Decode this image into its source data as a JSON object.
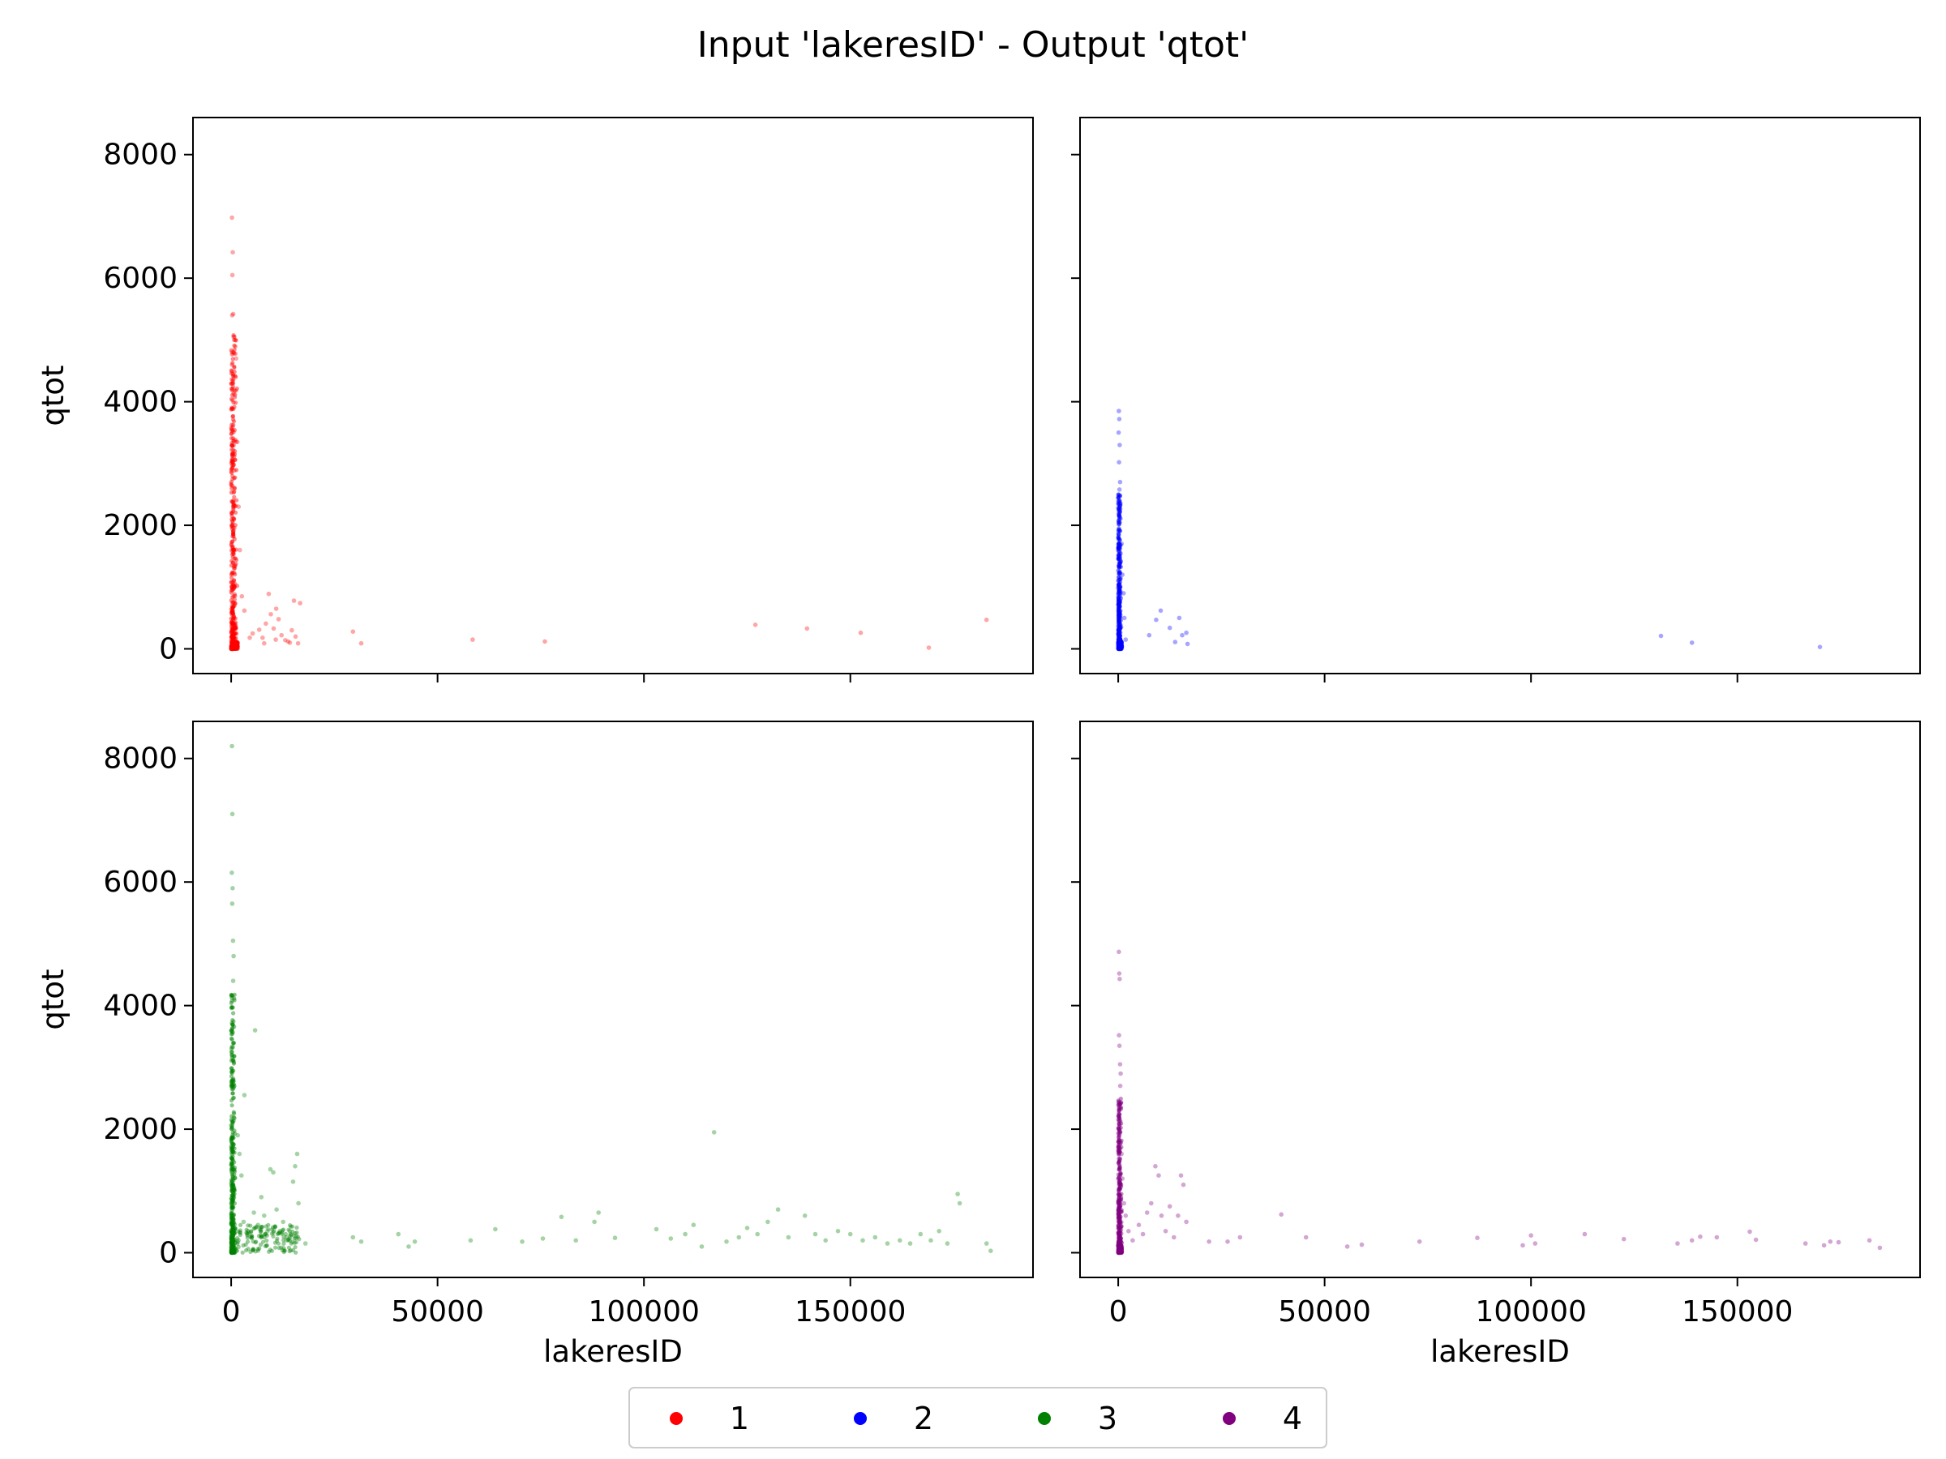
{
  "chart_data": {
    "type": "scatter",
    "title": "Input 'lakeresID' - Output 'qtot'",
    "xlabel": "lakeresID",
    "ylabel": "qtot",
    "xlim": [
      -9250,
      194250
    ],
    "ylim": [
      -400,
      8600
    ],
    "x_ticks": [
      0,
      50000,
      100000,
      150000
    ],
    "x_tick_labels": [
      "0",
      "50000",
      "100000",
      "150000"
    ],
    "y_ticks": [
      0,
      2000,
      4000,
      6000,
      8000
    ],
    "y_tick_labels": [
      "0",
      "2000",
      "4000",
      "6000",
      "8000"
    ],
    "shared_x": true,
    "shared_y": true,
    "grid": false,
    "legend": {
      "placement": "bottom-center",
      "entries": [
        "1",
        "2",
        "3",
        "4"
      ]
    },
    "series": [
      {
        "name": "1",
        "color": "#ff0000",
        "position": "top-left",
        "dense": {
          "x_max": 1500,
          "y_max": 5100
        },
        "points": [
          [
            200,
            6980
          ],
          [
            400,
            6420
          ],
          [
            300,
            6050
          ],
          [
            500,
            5420
          ],
          [
            250,
            5400
          ],
          [
            600,
            5050
          ],
          [
            1200,
            4700
          ],
          [
            1500,
            3350
          ],
          [
            1800,
            2300
          ],
          [
            2100,
            1600
          ],
          [
            900,
            1350
          ],
          [
            2600,
            850
          ],
          [
            3200,
            620
          ],
          [
            4500,
            180
          ],
          [
            5200,
            250
          ],
          [
            6800,
            310
          ],
          [
            7600,
            180
          ],
          [
            8400,
            410
          ],
          [
            9100,
            890
          ],
          [
            9600,
            560
          ],
          [
            10300,
            330
          ],
          [
            10800,
            150
          ],
          [
            11500,
            480
          ],
          [
            12200,
            220
          ],
          [
            13100,
            140
          ],
          [
            13800,
            120
          ],
          [
            14200,
            100
          ],
          [
            14700,
            300
          ],
          [
            15200,
            780
          ],
          [
            15600,
            200
          ],
          [
            16200,
            90
          ],
          [
            16700,
            740
          ],
          [
            8000,
            90
          ],
          [
            10900,
            650
          ],
          [
            29500,
            280
          ],
          [
            31500,
            90
          ],
          [
            58500,
            150
          ],
          [
            76000,
            120
          ],
          [
            127000,
            390
          ],
          [
            139500,
            330
          ],
          [
            152500,
            260
          ],
          [
            169000,
            20
          ],
          [
            183000,
            470
          ]
        ]
      },
      {
        "name": "2",
        "color": "#0000ff",
        "position": "top-right",
        "dense": {
          "x_max": 700,
          "y_max": 2500
        },
        "points": [
          [
            150,
            3850
          ],
          [
            250,
            3720
          ],
          [
            100,
            3500
          ],
          [
            350,
            3300
          ],
          [
            200,
            3020
          ],
          [
            450,
            2700
          ],
          [
            300,
            2580
          ],
          [
            550,
            2350
          ],
          [
            800,
            1700
          ],
          [
            1000,
            1200
          ],
          [
            1300,
            900
          ],
          [
            1500,
            500
          ],
          [
            700,
            350
          ],
          [
            1800,
            150
          ],
          [
            7500,
            220
          ],
          [
            9200,
            470
          ],
          [
            10300,
            620
          ],
          [
            12500,
            340
          ],
          [
            13800,
            110
          ],
          [
            14800,
            500
          ],
          [
            15500,
            220
          ],
          [
            16500,
            260
          ],
          [
            16800,
            80
          ],
          [
            131500,
            210
          ],
          [
            139000,
            100
          ],
          [
            170000,
            30
          ]
        ]
      },
      {
        "name": "3",
        "color": "#008000",
        "position": "bottom-left",
        "dense": {
          "x_max": 1000,
          "y_max": 4200
        },
        "points": [
          [
            200,
            8200
          ],
          [
            300,
            7100
          ],
          [
            150,
            6150
          ],
          [
            350,
            5900
          ],
          [
            250,
            5650
          ],
          [
            450,
            5050
          ],
          [
            600,
            4800
          ],
          [
            500,
            4400
          ],
          [
            3200,
            2550
          ],
          [
            5800,
            3600
          ],
          [
            1600,
            1900
          ],
          [
            2000,
            1600
          ],
          [
            2500,
            1250
          ],
          [
            3000,
            500
          ],
          [
            4000,
            300
          ],
          [
            5500,
            650
          ],
          [
            6500,
            450
          ],
          [
            7300,
            900
          ],
          [
            8000,
            600
          ],
          [
            8800,
            350
          ],
          [
            9500,
            1350
          ],
          [
            10200,
            1300
          ],
          [
            11000,
            700
          ],
          [
            11800,
            350
          ],
          [
            12600,
            500
          ],
          [
            13400,
            200
          ],
          [
            14200,
            350
          ],
          [
            15000,
            1150
          ],
          [
            15500,
            1400
          ],
          [
            16000,
            1600
          ],
          [
            16300,
            800
          ],
          [
            18000,
            150
          ],
          [
            29500,
            250
          ],
          [
            31500,
            180
          ],
          [
            40500,
            300
          ],
          [
            43000,
            100
          ],
          [
            44500,
            180
          ],
          [
            58000,
            200
          ],
          [
            64000,
            380
          ],
          [
            70500,
            180
          ],
          [
            75500,
            230
          ],
          [
            80000,
            580
          ],
          [
            83500,
            200
          ],
          [
            88000,
            500
          ],
          [
            89000,
            650
          ],
          [
            93000,
            240
          ],
          [
            103000,
            380
          ],
          [
            106500,
            230
          ],
          [
            110000,
            300
          ],
          [
            112000,
            450
          ],
          [
            114000,
            100
          ],
          [
            117000,
            1950
          ],
          [
            120000,
            180
          ],
          [
            123000,
            250
          ],
          [
            125000,
            400
          ],
          [
            127500,
            300
          ],
          [
            130000,
            500
          ],
          [
            132500,
            700
          ],
          [
            135000,
            250
          ],
          [
            139000,
            600
          ],
          [
            141500,
            300
          ],
          [
            144000,
            200
          ],
          [
            147000,
            350
          ],
          [
            150000,
            300
          ],
          [
            153000,
            200
          ],
          [
            156000,
            250
          ],
          [
            159000,
            150
          ],
          [
            162000,
            200
          ],
          [
            164500,
            150
          ],
          [
            167000,
            300
          ],
          [
            169500,
            200
          ],
          [
            171500,
            350
          ],
          [
            173500,
            150
          ],
          [
            176000,
            950
          ],
          [
            176500,
            800
          ],
          [
            183000,
            150
          ],
          [
            184000,
            30
          ]
        ]
      },
      {
        "name": "4",
        "color": "#800080",
        "position": "bottom-right",
        "dense": {
          "x_max": 900,
          "y_max": 2500
        },
        "points": [
          [
            150,
            4870
          ],
          [
            250,
            4520
          ],
          [
            350,
            4430
          ],
          [
            200,
            3520
          ],
          [
            300,
            3350
          ],
          [
            450,
            3050
          ],
          [
            600,
            2900
          ],
          [
            500,
            2700
          ],
          [
            800,
            1600
          ],
          [
            1000,
            1200
          ],
          [
            1400,
            800
          ],
          [
            1800,
            600
          ],
          [
            2500,
            350
          ],
          [
            3500,
            200
          ],
          [
            5000,
            450
          ],
          [
            6000,
            300
          ],
          [
            7000,
            650
          ],
          [
            8000,
            800
          ],
          [
            9000,
            1400
          ],
          [
            9800,
            1250
          ],
          [
            10500,
            600
          ],
          [
            11500,
            350
          ],
          [
            12500,
            750
          ],
          [
            13500,
            250
          ],
          [
            14500,
            600
          ],
          [
            15200,
            1250
          ],
          [
            15800,
            1100
          ],
          [
            16500,
            500
          ],
          [
            22000,
            180
          ],
          [
            26500,
            180
          ],
          [
            29500,
            250
          ],
          [
            39500,
            620
          ],
          [
            45500,
            250
          ],
          [
            55500,
            100
          ],
          [
            59000,
            130
          ],
          [
            73000,
            180
          ],
          [
            87000,
            240
          ],
          [
            98000,
            120
          ],
          [
            100000,
            280
          ],
          [
            101000,
            150
          ],
          [
            113000,
            300
          ],
          [
            122500,
            220
          ],
          [
            135500,
            150
          ],
          [
            139000,
            200
          ],
          [
            141000,
            260
          ],
          [
            145000,
            250
          ],
          [
            153000,
            340
          ],
          [
            154500,
            210
          ],
          [
            166500,
            150
          ],
          [
            171000,
            120
          ],
          [
            172500,
            180
          ],
          [
            174500,
            170
          ],
          [
            182000,
            200
          ],
          [
            184500,
            80
          ]
        ]
      }
    ]
  }
}
